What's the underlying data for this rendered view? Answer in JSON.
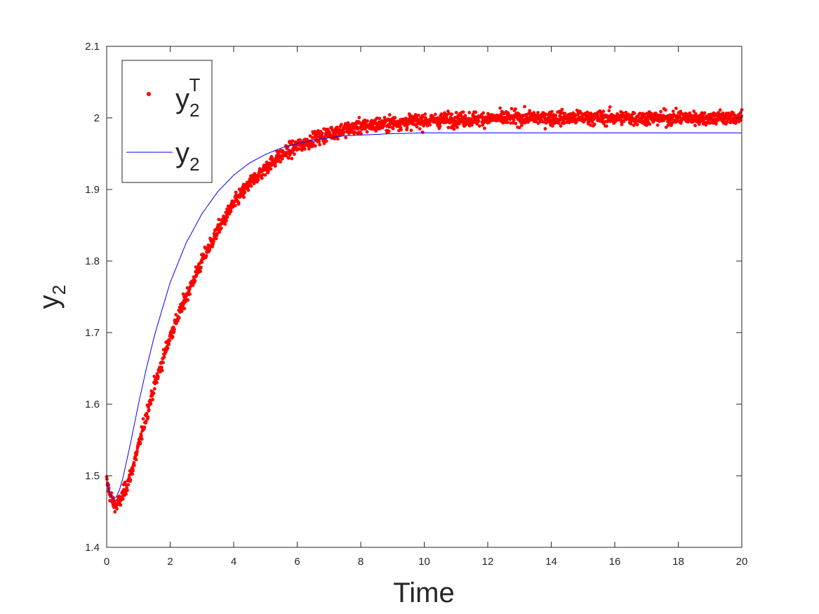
{
  "chart_data": {
    "type": "scatter",
    "title": "",
    "xlabel": "Time",
    "ylabel": {
      "base": "y",
      "sub": "2"
    },
    "xlim": [
      0,
      20
    ],
    "ylim": [
      1.4,
      2.1
    ],
    "xticks": [
      0,
      2,
      4,
      6,
      8,
      10,
      12,
      14,
      16,
      18,
      20
    ],
    "yticks": [
      1.4,
      1.5,
      1.6,
      1.7,
      1.8,
      1.9,
      2,
      2.1
    ],
    "xtick_labels": [
      "0",
      "2",
      "4",
      "6",
      "8",
      "10",
      "12",
      "14",
      "16",
      "18",
      "20"
    ],
    "ytick_labels": [
      "1.4",
      "1.5",
      "1.6",
      "1.7",
      "1.8",
      "1.9",
      "2",
      "2.1"
    ],
    "grid": false,
    "legend_position": "top-left",
    "series": [
      {
        "name": {
          "base": "y",
          "sub": "2",
          "sup": "T"
        },
        "style": "markers",
        "color": "#ff0000",
        "x": [
          0,
          0.1,
          0.2,
          0.3,
          0.4,
          0.5,
          0.75,
          1,
          1.25,
          1.5,
          1.75,
          2,
          2.5,
          3,
          3.5,
          4,
          4.5,
          5,
          5.5,
          6,
          6.5,
          7,
          7.5,
          8,
          9,
          10,
          11,
          12,
          13,
          14,
          15,
          16,
          17,
          18,
          19,
          20
        ],
        "y": [
          1.492,
          1.475,
          1.462,
          1.458,
          1.463,
          1.472,
          1.5,
          1.54,
          1.585,
          1.625,
          1.66,
          1.695,
          1.75,
          1.8,
          1.843,
          1.88,
          1.908,
          1.93,
          1.948,
          1.96,
          1.97,
          1.978,
          1.984,
          1.988,
          1.993,
          1.996,
          1.998,
          1.999,
          2.0,
          2.0,
          2.0,
          2.0,
          2.0,
          2.0,
          2.0,
          2.0
        ],
        "noise": 0.005
      },
      {
        "name": {
          "base": "y",
          "sub": "2"
        },
        "style": "line",
        "color": "#0000ff",
        "x": [
          0,
          0.1,
          0.2,
          0.3,
          0.4,
          0.5,
          0.75,
          1,
          1.25,
          1.5,
          1.75,
          2,
          2.5,
          3,
          3.5,
          4,
          4.5,
          5,
          5.5,
          6,
          6.5,
          7,
          7.5,
          8,
          9,
          10,
          12,
          14,
          16,
          18,
          20
        ],
        "y": [
          1.49,
          1.475,
          1.468,
          1.47,
          1.48,
          1.495,
          1.545,
          1.6,
          1.65,
          1.695,
          1.733,
          1.77,
          1.825,
          1.866,
          1.897,
          1.92,
          1.937,
          1.949,
          1.958,
          1.964,
          1.969,
          1.972,
          1.975,
          1.976,
          1.978,
          1.979,
          1.979,
          1.979,
          1.979,
          1.979,
          1.979
        ]
      }
    ]
  }
}
